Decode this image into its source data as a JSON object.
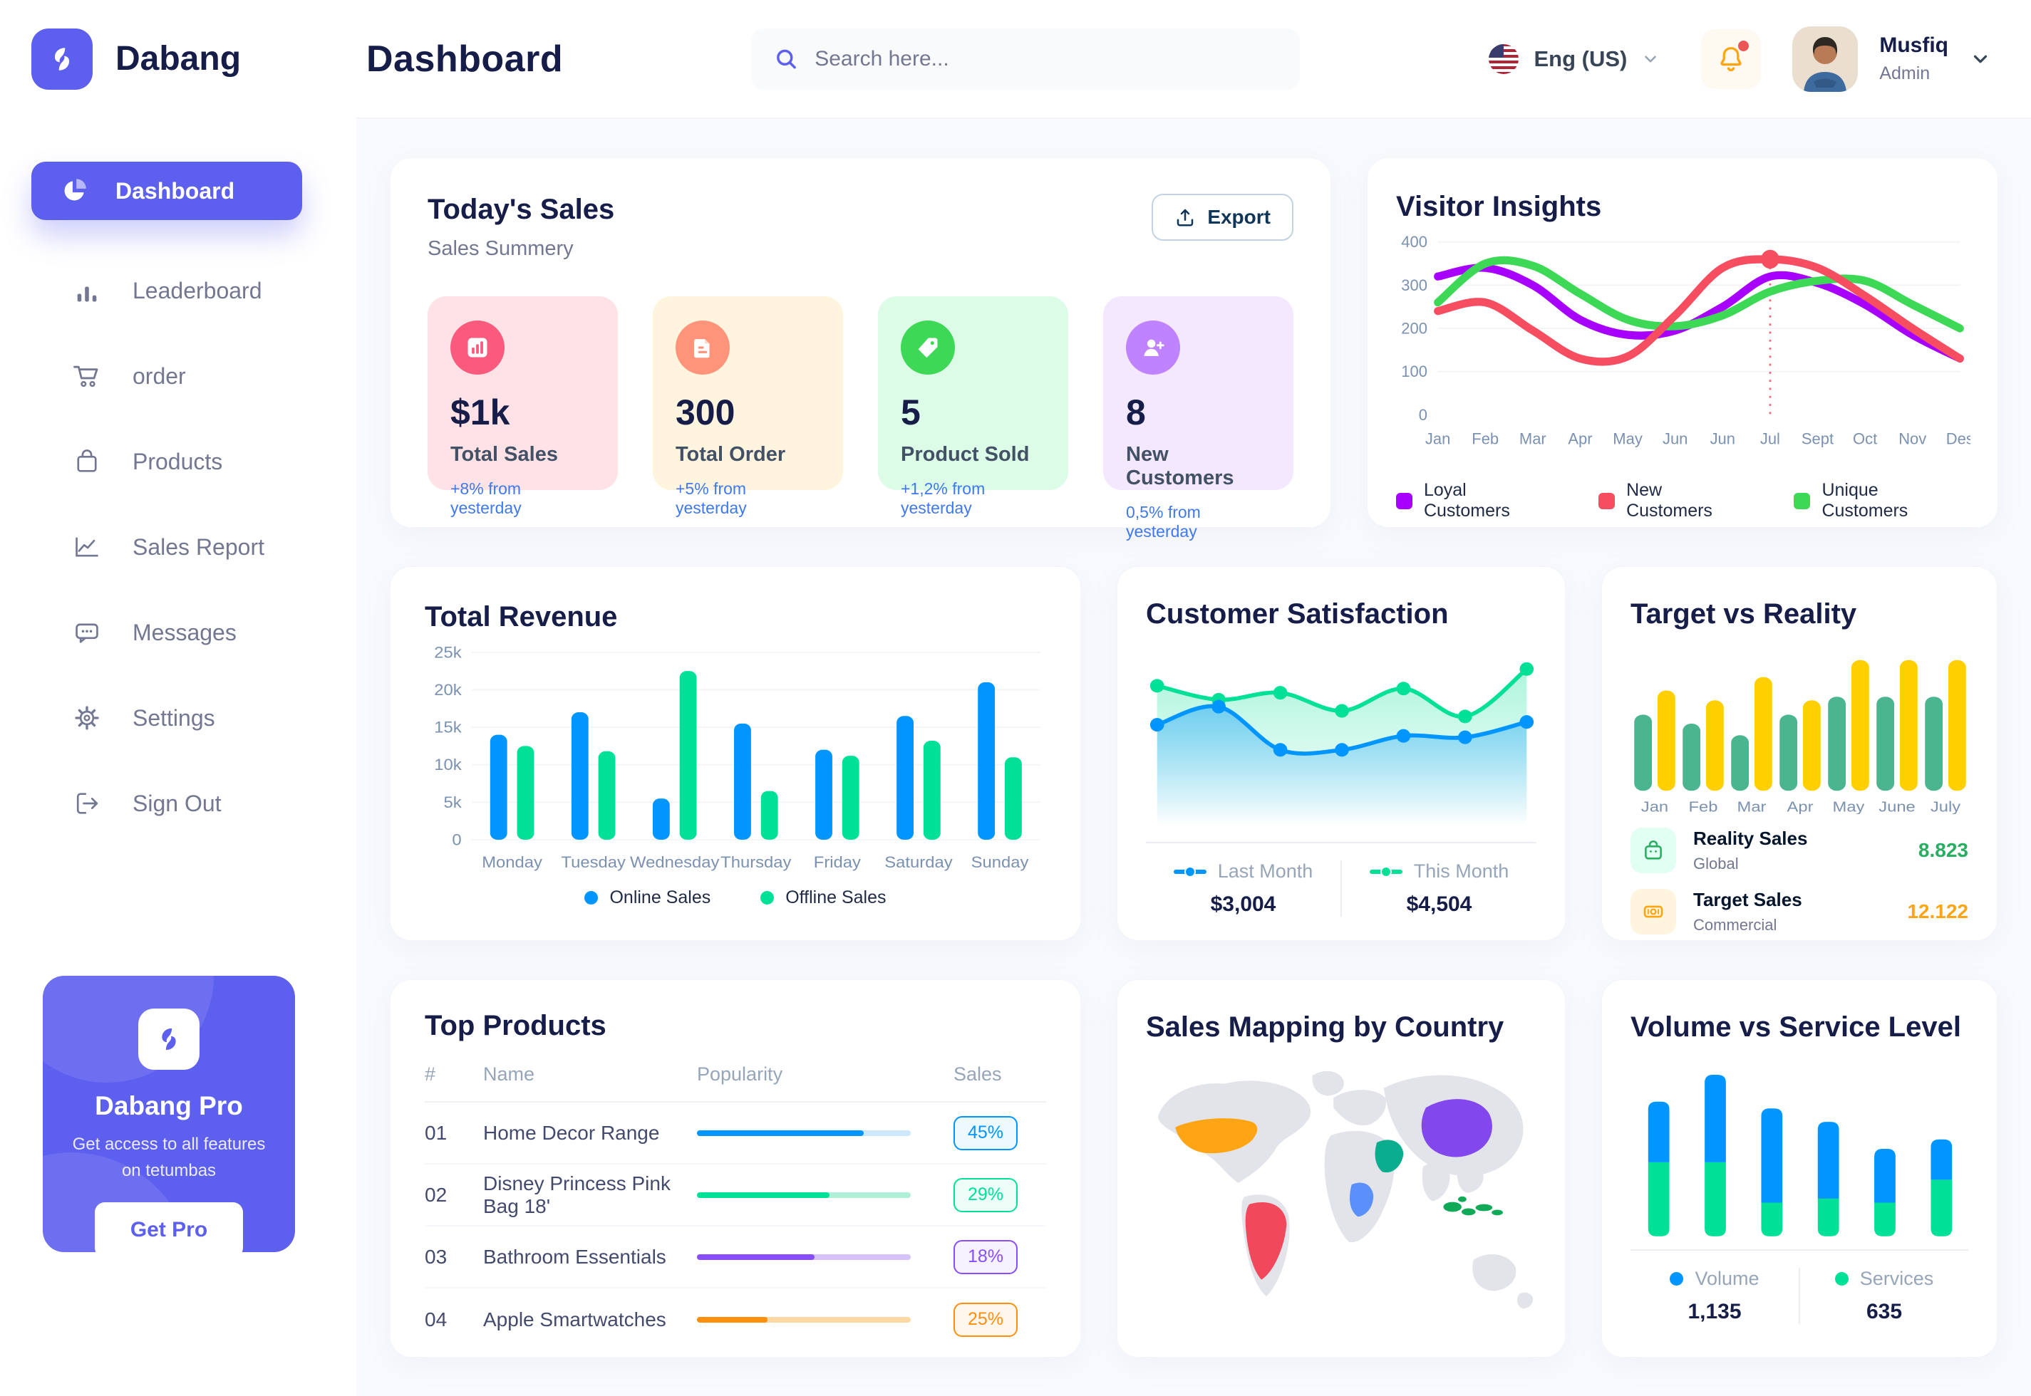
{
  "brand": {
    "name": "Dabang"
  },
  "header": {
    "page_title": "Dashboard",
    "search_placeholder": "Search here...",
    "language": "Eng (US)",
    "user_name": "Musfiq",
    "user_role": "Admin"
  },
  "sidebar": {
    "items": [
      {
        "label": "Dashboard"
      },
      {
        "label": "Leaderboard"
      },
      {
        "label": "order"
      },
      {
        "label": "Products"
      },
      {
        "label": "Sales Report"
      },
      {
        "label": "Messages"
      },
      {
        "label": "Settings"
      },
      {
        "label": "Sign Out"
      }
    ],
    "promo": {
      "title": "Dabang Pro",
      "description": "Get access to all features on tetumbas",
      "button_label": "Get Pro"
    }
  },
  "today_sales": {
    "title": "Today's Sales",
    "subtitle": "Sales Summery",
    "export_label": "Export",
    "cards": [
      {
        "value": "$1k",
        "label": "Total Sales",
        "delta": "+8% from yesterday",
        "bg": "#FFE2E5",
        "icon_bg": "#FA5A7D",
        "icon": "sales-chart-icon"
      },
      {
        "value": "300",
        "label": "Total Order",
        "delta": "+5% from yesterday",
        "bg": "#FFF4DE",
        "icon_bg": "#FF947A",
        "icon": "order-file-icon"
      },
      {
        "value": "5",
        "label": "Product Sold",
        "delta": "+1,2% from yesterday",
        "bg": "#DCFCE7",
        "icon_bg": "#3CD856",
        "icon": "tag-icon"
      },
      {
        "value": "8",
        "label": "New Customers",
        "delta": "0,5% from yesterday",
        "bg": "#F3E8FF",
        "icon_bg": "#BF83FF",
        "icon": "new-customer-icon"
      }
    ]
  },
  "chart_data": {
    "visitor_insights": {
      "type": "line",
      "title": "Visitor Insights",
      "x": [
        "Jan",
        "Feb",
        "Mar",
        "Apr",
        "May",
        "Jun",
        "Jun",
        "Jul",
        "Sept",
        "Oct",
        "Nov",
        "Des"
      ],
      "ylim": [
        0,
        400
      ],
      "yticks": [
        0,
        100,
        200,
        300,
        400
      ],
      "series": [
        {
          "name": "Loyal Customers",
          "color": "#A700FF",
          "values": [
            320,
            340,
            300,
            220,
            185,
            195,
            250,
            320,
            305,
            255,
            185,
            130
          ]
        },
        {
          "name": "New Customers",
          "color": "#F64E60",
          "values": [
            240,
            260,
            195,
            130,
            135,
            230,
            340,
            360,
            340,
            275,
            200,
            130
          ]
        },
        {
          "name": "Unique Customers",
          "color": "#3CD856",
          "values": [
            260,
            350,
            345,
            280,
            220,
            205,
            230,
            285,
            310,
            310,
            255,
            200
          ]
        }
      ],
      "highlight": {
        "series": "New Customers",
        "x_index": 7,
        "value": 360
      }
    },
    "total_revenue": {
      "type": "bar",
      "title": "Total Revenue",
      "categories": [
        "Monday",
        "Tuesday",
        "Wednesday",
        "Thursday",
        "Friday",
        "Saturday",
        "Sunday"
      ],
      "ylim": [
        0,
        25000
      ],
      "yticks": [
        0,
        5000,
        10000,
        15000,
        20000,
        25000
      ],
      "ytick_labels": [
        "0",
        "5k",
        "10k",
        "15k",
        "20k",
        "25k"
      ],
      "series": [
        {
          "name": "Online Sales",
          "color": "#0095FF",
          "values": [
            14000,
            17000,
            5500,
            15500,
            12000,
            16500,
            21000
          ]
        },
        {
          "name": "Offline Sales",
          "color": "#00E096",
          "values": [
            12500,
            11800,
            22500,
            6500,
            11200,
            13200,
            11000
          ]
        }
      ]
    },
    "customer_satisfaction": {
      "type": "area",
      "title": "Customer Satisfaction",
      "series": [
        {
          "name": "Last Month",
          "color": "#0095FF",
          "total": "$3,004",
          "values": [
            3.0,
            3.65,
            2.1,
            2.1,
            2.6,
            2.55,
            3.1
          ]
        },
        {
          "name": "This Month",
          "color": "#00E096",
          "total": "$4,504",
          "values": [
            4.4,
            3.9,
            4.15,
            3.5,
            4.3,
            3.3,
            5.0
          ]
        }
      ]
    },
    "target_vs_reality": {
      "type": "bar",
      "title": "Target vs Reality",
      "categories": [
        "Jan",
        "Feb",
        "Mar",
        "Apr",
        "May",
        "June",
        "July"
      ],
      "series": [
        {
          "name": "Reality Sales",
          "color": "#4AB58E",
          "values": [
            8.5,
            7.5,
            6.2,
            8.5,
            10.5,
            10.5,
            10.5
          ]
        },
        {
          "name": "Target Sales",
          "color": "#FFCF00",
          "values": [
            11.2,
            10.1,
            12.7,
            10.1,
            14.6,
            14.6,
            14.6
          ]
        }
      ],
      "legend": [
        {
          "label": "Reality Sales",
          "sub": "Global",
          "value": "8.823",
          "value_color": "#27AE60",
          "icon_bg": "#E2FFF3"
        },
        {
          "label": "Target Sales",
          "sub": "Commercial",
          "value": "12.122",
          "value_color": "#FFA412",
          "icon_bg": "#FFF4DE"
        }
      ]
    },
    "volume_vs_service": {
      "type": "stacked-bar",
      "title": "Volume vs Service Level",
      "series": [
        {
          "name": "Volume",
          "color": "#0095FF",
          "total": "1,135",
          "values": [
            45,
            65,
            70,
            57,
            40,
            30
          ]
        },
        {
          "name": "Services",
          "color": "#00E096",
          "total": "635",
          "values": [
            55,
            55,
            25,
            28,
            25,
            42
          ]
        }
      ]
    }
  },
  "top_products": {
    "title": "Top Products",
    "headers": [
      "#",
      "Name",
      "Popularity",
      "Sales"
    ],
    "rows": [
      {
        "num": "01",
        "name": "Home Decor Range",
        "popularity": 78,
        "sales": "45%",
        "color": "#0095FF",
        "track": "#CDE7FF"
      },
      {
        "num": "02",
        "name": "Disney Princess Pink Bag 18'",
        "popularity": 62,
        "sales": "29%",
        "color": "#00E096",
        "track": "#B0F0D7"
      },
      {
        "num": "03",
        "name": "Bathroom Essentials",
        "popularity": 55,
        "sales": "18%",
        "color": "#884DFF",
        "track": "#D5C2FB"
      },
      {
        "num": "04",
        "name": "Apple Smartwatches",
        "popularity": 33,
        "sales": "25%",
        "color": "#FF8F0D",
        "track": "#FFD9A3"
      }
    ]
  },
  "sales_mapping": {
    "title": "Sales Mapping by Country",
    "countries": [
      {
        "name": "United States",
        "color": "#FFA412"
      },
      {
        "name": "Brazil",
        "color": "#F2485B"
      },
      {
        "name": "DR Congo",
        "color": "#5B8FF9"
      },
      {
        "name": "Saudi Arabia",
        "color": "#0BAD8F"
      },
      {
        "name": "China",
        "color": "#8348ED"
      },
      {
        "name": "Indonesia",
        "color": "#0FA958"
      }
    ]
  }
}
